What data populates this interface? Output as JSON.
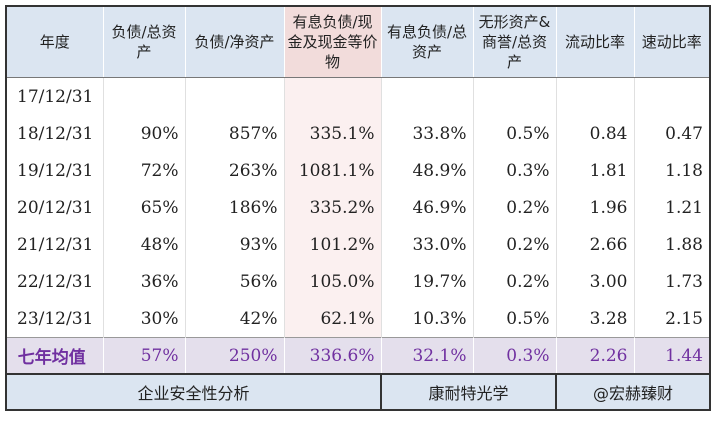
{
  "headers": [
    "年度",
    "负债/总资产",
    "负债/净资产",
    "有息负债/现金及现金等价物",
    "有息负债/总资产",
    "无形资产&商誉/总资产",
    "流动比率",
    "速动比率"
  ],
  "rows": [
    [
      "17/12/31",
      "",
      "",
      "",
      "",
      "",
      "",
      ""
    ],
    [
      "18/12/31",
      "90%",
      "857%",
      "335.1%",
      "33.8%",
      "0.5%",
      "0.84",
      "0.47"
    ],
    [
      "19/12/31",
      "72%",
      "263%",
      "1081.1%",
      "48.9%",
      "0.3%",
      "1.81",
      "1.18"
    ],
    [
      "20/12/31",
      "65%",
      "186%",
      "335.2%",
      "46.9%",
      "0.2%",
      "1.96",
      "1.21"
    ],
    [
      "21/12/31",
      "48%",
      "93%",
      "101.2%",
      "33.0%",
      "0.2%",
      "2.66",
      "1.88"
    ],
    [
      "22/12/31",
      "36%",
      "56%",
      "105.0%",
      "19.7%",
      "0.2%",
      "3.00",
      "1.73"
    ],
    [
      "23/12/31",
      "30%",
      "42%",
      "62.1%",
      "10.3%",
      "0.5%",
      "3.28",
      "2.15"
    ]
  ],
  "average": [
    "七年均值",
    "57%",
    "250%",
    "336.6%",
    "32.1%",
    "0.3%",
    "2.26",
    "1.44"
  ],
  "footer": {
    "analysis": "企业安全性分析",
    "company": "康耐特光学",
    "author": "@宏赫臻财"
  },
  "colors": {
    "header_bg": "#dbe5f1",
    "highlight_header_bg": "#f2dcdb",
    "average_bg": "#e4dfec",
    "average_text": "#7030a0"
  }
}
